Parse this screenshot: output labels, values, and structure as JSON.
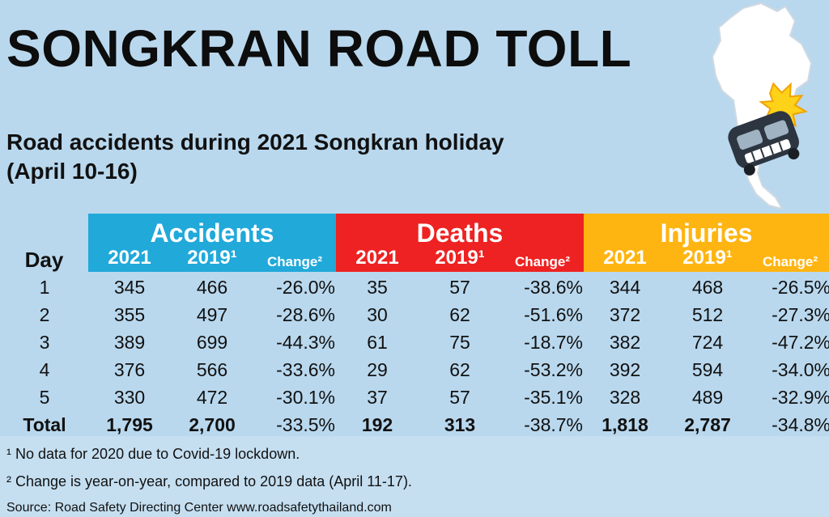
{
  "title": "SONGKRAN ROAD TOLL",
  "subtitle_line1": "Road accidents during 2021 Songkran holiday",
  "subtitle_line2": "(April 10-16)",
  "colors": {
    "accidents": "#21a9da",
    "deaths": "#ee2222",
    "injuries": "#ffb511",
    "background": "#b9d8ee"
  },
  "chart_data": {
    "type": "table",
    "row_header": "Day",
    "groups": [
      {
        "key": "accidents",
        "name": "Accidents",
        "columns": [
          "2021",
          "2019¹",
          "Change²"
        ]
      },
      {
        "key": "deaths",
        "name": "Deaths",
        "columns": [
          "2021",
          "2019¹",
          "Change²"
        ]
      },
      {
        "key": "injuries",
        "name": "Injuries",
        "columns": [
          "2021",
          "2019¹",
          "Change²"
        ]
      }
    ],
    "rows": [
      {
        "day": "1",
        "values": [
          "345",
          "466",
          "-26.0%",
          "35",
          "57",
          "-38.6%",
          "344",
          "468",
          "-26.5%"
        ]
      },
      {
        "day": "2",
        "values": [
          "355",
          "497",
          "-28.6%",
          "30",
          "62",
          "-51.6%",
          "372",
          "512",
          "-27.3%"
        ]
      },
      {
        "day": "3",
        "values": [
          "389",
          "699",
          "-44.3%",
          "61",
          "75",
          "-18.7%",
          "382",
          "724",
          "-47.2%"
        ]
      },
      {
        "day": "4",
        "values": [
          "376",
          "566",
          "-33.6%",
          "29",
          "62",
          "-53.2%",
          "392",
          "594",
          "-34.0%"
        ]
      },
      {
        "day": "5",
        "values": [
          "330",
          "472",
          "-30.1%",
          "37",
          "57",
          "-35.1%",
          "328",
          "489",
          "-32.9%"
        ]
      }
    ],
    "total": {
      "day": "Total",
      "values": [
        "1,795",
        "2,700",
        "-33.5%",
        "192",
        "313",
        "-38.7%",
        "1,818",
        "2,787",
        "-34.8%"
      ]
    }
  },
  "footnotes": {
    "note1": "¹ No data for 2020 due to Covid-19 lockdown.",
    "note2": "² Change is year-on-year, compared to 2019 data (April 11-17).",
    "source": "Source: Road Safety Directing Center www.roadsafetythailand.com"
  },
  "icons": {
    "map": "thailand-map-icon",
    "car": "crashed-car-icon"
  }
}
